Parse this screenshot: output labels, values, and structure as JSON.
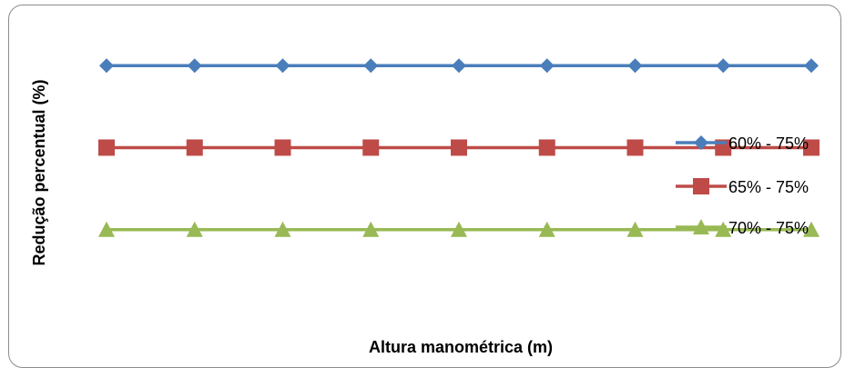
{
  "chart_data": {
    "type": "line",
    "title": "",
    "xlabel": "Altura manométrica (m)",
    "ylabel": "Redução percentual (%)",
    "x": [
      1,
      2,
      3,
      4,
      5,
      6,
      7,
      8,
      9
    ],
    "ylim": [
      0,
      1
    ],
    "grid": false,
    "legend_position": "right",
    "series": [
      {
        "name": "60% - 75%",
        "values": [
          0.8,
          0.8,
          0.8,
          0.8,
          0.8,
          0.8,
          0.8,
          0.8,
          0.8
        ],
        "color": "#4a7ebb",
        "marker": "diamond"
      },
      {
        "name": "65% - 75%",
        "values": [
          0.55,
          0.55,
          0.55,
          0.55,
          0.55,
          0.55,
          0.55,
          0.55,
          0.55
        ],
        "color": "#be4b48",
        "marker": "square"
      },
      {
        "name": "70% - 75%",
        "values": [
          0.3,
          0.3,
          0.3,
          0.3,
          0.3,
          0.3,
          0.3,
          0.3,
          0.3
        ],
        "color": "#98b954",
        "marker": "triangle"
      }
    ]
  }
}
